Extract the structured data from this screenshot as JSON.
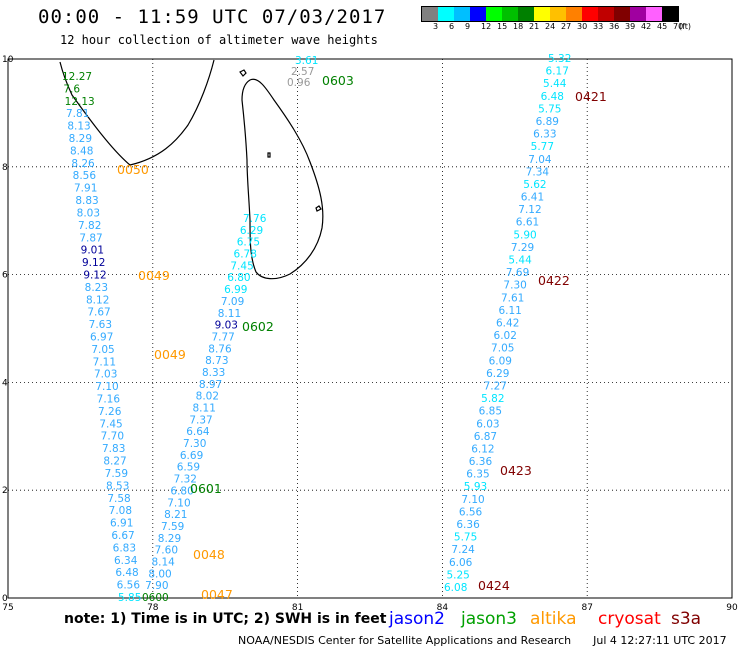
{
  "title": "00:00 - 11:59 UTC 07/03/2017",
  "subtitle": "12 hour collection of altimeter wave heights",
  "color_scale": {
    "labels": [
      "3",
      "6",
      "9",
      "12",
      "15",
      "18",
      "21",
      "24",
      "27",
      "30",
      "33",
      "36",
      "39",
      "42",
      "45",
      "70"
    ],
    "unit": "(ft)",
    "colors": [
      "#808080",
      "#00ffff",
      "#00bfff",
      "#0000ff",
      "#00ff00",
      "#00c000",
      "#008000",
      "#ffff00",
      "#ffc000",
      "#ff8000",
      "#ff0000",
      "#c00000",
      "#800000",
      "#a000a0",
      "#ff60ff",
      "#000000"
    ]
  },
  "map": {
    "x_ticks": [
      "75",
      "78",
      "81",
      "84",
      "87",
      "90"
    ],
    "y_ticks": [
      "10",
      "8",
      "6",
      "4",
      "2",
      "0"
    ],
    "colors": {
      "light_cyan": "#00e5ff",
      "sky": "#33aaff",
      "navy": "#000099",
      "green": "#008000",
      "orange": "#ff9900",
      "maroon": "#800000",
      "gray": "#999999",
      "coast": "#000000"
    },
    "track_a": [
      {
        "v": "12.27",
        "c": "green"
      },
      {
        "v": "7.6",
        "c": "green"
      },
      {
        "v": "12.13",
        "c": "green"
      },
      {
        "v": "7.81",
        "c": "sky"
      },
      {
        "v": "8.13",
        "c": "sky"
      },
      {
        "v": "8.29",
        "c": "sky"
      },
      {
        "v": "8.48",
        "c": "sky"
      },
      {
        "v": "8.26",
        "c": "sky"
      },
      {
        "v": "8.56",
        "c": "sky"
      },
      {
        "v": "7.91",
        "c": "sky"
      },
      {
        "v": "8.83",
        "c": "sky"
      },
      {
        "v": "8.03",
        "c": "sky"
      },
      {
        "v": "7.82",
        "c": "sky"
      },
      {
        "v": "7.87",
        "c": "sky"
      },
      {
        "v": "9.01",
        "c": "navy"
      },
      {
        "v": "9.12",
        "c": "navy"
      },
      {
        "v": "9.12",
        "c": "navy"
      },
      {
        "v": "8.23",
        "c": "sky"
      },
      {
        "v": "8.12",
        "c": "sky"
      },
      {
        "v": "7.67",
        "c": "sky"
      },
      {
        "v": "7.63",
        "c": "sky"
      },
      {
        "v": "6.97",
        "c": "sky"
      },
      {
        "v": "7.05",
        "c": "sky"
      },
      {
        "v": "7.11",
        "c": "sky"
      },
      {
        "v": "7.03",
        "c": "sky"
      },
      {
        "v": "7.10",
        "c": "sky"
      },
      {
        "v": "7.16",
        "c": "sky"
      },
      {
        "v": "7.26",
        "c": "sky"
      },
      {
        "v": "7.45",
        "c": "sky"
      },
      {
        "v": "7.70",
        "c": "sky"
      },
      {
        "v": "7.83",
        "c": "sky"
      },
      {
        "v": "8.27",
        "c": "sky"
      },
      {
        "v": "7.59",
        "c": "sky"
      },
      {
        "v": "8.53",
        "c": "sky"
      },
      {
        "v": "7.58",
        "c": "sky"
      },
      {
        "v": "7.08",
        "c": "sky"
      },
      {
        "v": "6.91",
        "c": "sky"
      },
      {
        "v": "6.67",
        "c": "sky"
      },
      {
        "v": "6.83",
        "c": "sky"
      },
      {
        "v": "6.34",
        "c": "sky"
      },
      {
        "v": "6.48",
        "c": "sky"
      },
      {
        "v": "6.56",
        "c": "sky"
      },
      {
        "v": "5.85",
        "c": "light_cyan"
      }
    ],
    "track_b": [
      {
        "v": "7.76",
        "c": "light_cyan"
      },
      {
        "v": "6.29",
        "c": "light_cyan"
      },
      {
        "v": "6.75",
        "c": "light_cyan"
      },
      {
        "v": "6.78",
        "c": "light_cyan"
      },
      {
        "v": "7.45",
        "c": "light_cyan"
      },
      {
        "v": "6.80",
        "c": "light_cyan"
      },
      {
        "v": "6.99",
        "c": "light_cyan"
      },
      {
        "v": "7.09",
        "c": "sky"
      },
      {
        "v": "8.11",
        "c": "sky"
      },
      {
        "v": "9.03",
        "c": "navy"
      },
      {
        "v": "7.77",
        "c": "sky"
      },
      {
        "v": "8.76",
        "c": "sky"
      },
      {
        "v": "8.73",
        "c": "sky"
      },
      {
        "v": "8.33",
        "c": "sky"
      },
      {
        "v": "8.97",
        "c": "sky"
      },
      {
        "v": "8.02",
        "c": "sky"
      },
      {
        "v": "8.11",
        "c": "sky"
      },
      {
        "v": "7.37",
        "c": "sky"
      },
      {
        "v": "6.64",
        "c": "sky"
      },
      {
        "v": "7.30",
        "c": "sky"
      },
      {
        "v": "6.69",
        "c": "sky"
      },
      {
        "v": "6.59",
        "c": "sky"
      },
      {
        "v": "7.32",
        "c": "sky"
      },
      {
        "v": "6.80",
        "c": "sky"
      },
      {
        "v": "7.10",
        "c": "sky"
      },
      {
        "v": "8.21",
        "c": "sky"
      },
      {
        "v": "7.59",
        "c": "sky"
      },
      {
        "v": "8.29",
        "c": "sky"
      },
      {
        "v": "7.60",
        "c": "sky"
      },
      {
        "v": "8.14",
        "c": "sky"
      },
      {
        "v": "8.00",
        "c": "sky"
      },
      {
        "v": "7.90",
        "c": "sky"
      },
      {
        "v": "0600",
        "c": "green"
      }
    ],
    "track_b_top": [
      {
        "v": "3.61",
        "c": "light_cyan"
      },
      {
        "v": "2.57",
        "c": "gray"
      },
      {
        "v": "0.96",
        "c": "gray"
      }
    ],
    "track_c": [
      {
        "v": "5.32",
        "c": "light_cyan"
      },
      {
        "v": "6.17",
        "c": "light_cyan"
      },
      {
        "v": "5.44",
        "c": "light_cyan"
      },
      {
        "v": "6.48",
        "c": "light_cyan"
      },
      {
        "v": "5.75",
        "c": "light_cyan"
      },
      {
        "v": "6.89",
        "c": "sky"
      },
      {
        "v": "6.33",
        "c": "sky"
      },
      {
        "v": "5.77",
        "c": "light_cyan"
      },
      {
        "v": "7.04",
        "c": "sky"
      },
      {
        "v": "7.34",
        "c": "sky"
      },
      {
        "v": "5.62",
        "c": "light_cyan"
      },
      {
        "v": "6.41",
        "c": "sky"
      },
      {
        "v": "7.12",
        "c": "sky"
      },
      {
        "v": "6.61",
        "c": "sky"
      },
      {
        "v": "5.90",
        "c": "light_cyan"
      },
      {
        "v": "7.29",
        "c": "sky"
      },
      {
        "v": "5.44",
        "c": "light_cyan"
      },
      {
        "v": "7.69",
        "c": "sky"
      },
      {
        "v": "7.30",
        "c": "sky"
      },
      {
        "v": "7.61",
        "c": "sky"
      },
      {
        "v": "6.11",
        "c": "sky"
      },
      {
        "v": "6.42",
        "c": "sky"
      },
      {
        "v": "6.02",
        "c": "sky"
      },
      {
        "v": "7.05",
        "c": "sky"
      },
      {
        "v": "6.09",
        "c": "sky"
      },
      {
        "v": "6.29",
        "c": "sky"
      },
      {
        "v": "7.27",
        "c": "sky"
      },
      {
        "v": "5.82",
        "c": "light_cyan"
      },
      {
        "v": "6.85",
        "c": "sky"
      },
      {
        "v": "6.03",
        "c": "sky"
      },
      {
        "v": "6.87",
        "c": "sky"
      },
      {
        "v": "6.12",
        "c": "sky"
      },
      {
        "v": "6.36",
        "c": "sky"
      },
      {
        "v": "6.35",
        "c": "sky"
      },
      {
        "v": "5.93",
        "c": "light_cyan"
      },
      {
        "v": "7.10",
        "c": "sky"
      },
      {
        "v": "6.56",
        "c": "sky"
      },
      {
        "v": "6.36",
        "c": "sky"
      },
      {
        "v": "5.75",
        "c": "light_cyan"
      },
      {
        "v": "7.24",
        "c": "sky"
      },
      {
        "v": "6.06",
        "c": "sky"
      },
      {
        "v": "5.25",
        "c": "light_cyan"
      },
      {
        "v": "6.08",
        "c": "light_cyan"
      }
    ],
    "time_labels": [
      {
        "v": "0603",
        "c": "green"
      },
      {
        "v": "0050",
        "c": "orange"
      },
      {
        "v": "0049",
        "c": "orange"
      },
      {
        "v": "0049",
        "c": "orange"
      },
      {
        "v": "0602",
        "c": "green"
      },
      {
        "v": "0601",
        "c": "green"
      },
      {
        "v": "0048",
        "c": "orange"
      },
      {
        "v": "0047",
        "c": "orange"
      },
      {
        "v": "0421",
        "c": "maroon"
      },
      {
        "v": "0422",
        "c": "maroon"
      },
      {
        "v": "0423",
        "c": "maroon"
      },
      {
        "v": "0424",
        "c": "maroon"
      }
    ]
  },
  "note": "note: 1) Time is in UTC; 2) SWH is in feet",
  "legend": [
    {
      "name": "jason2",
      "color": "#0000ff"
    },
    {
      "name": "jason3",
      "color": "#00a000"
    },
    {
      "name": "altika",
      "color": "#ff9900"
    },
    {
      "name": "cryosat",
      "color": "#ff0000"
    },
    {
      "name": "s3a",
      "color": "#800000"
    }
  ],
  "credit": "NOAA/NESDIS Center for Satellite Applications and Research",
  "timestamp": "Jul  4 12:27:11 UTC 2017"
}
